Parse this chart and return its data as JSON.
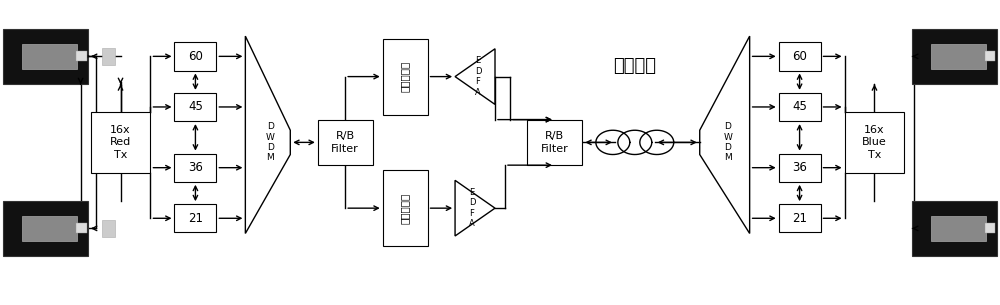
{
  "bg_color": "#ffffff",
  "line_color": "#000000",
  "fig_width": 10.0,
  "fig_height": 3.05,
  "fiber_label": "光纤链路",
  "left_tx_label": "16x\nRed\nTx",
  "right_tx_label": "16x\nBlue\nTx",
  "dwdm_label": "D\nW\nD\nM",
  "rb_filter_label": "R/B\nFilter",
  "edfa_label": "E\nD\nF\nA",
  "dispcomp_label": "色散补偿器",
  "channel_labels": [
    "60",
    "45",
    "36",
    "21"
  ],
  "xmax": 100,
  "ymax": 30
}
